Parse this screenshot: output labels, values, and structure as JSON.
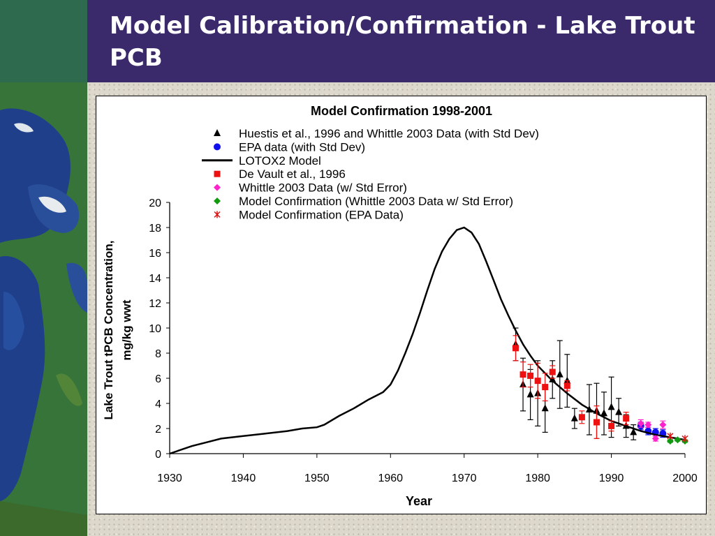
{
  "slide": {
    "title": "Model Calibration/Confirmation - Lake Trout PCB"
  },
  "colors": {
    "title_bar": "#3a2a6b",
    "green_block": "#2e6b4e",
    "huestis": "#000000",
    "epa": "#1010ee",
    "model": "#000000",
    "devault": "#ee1111",
    "whittle": "#ff22cc",
    "confirm_whittle": "#119911",
    "confirm_epa": "#dd1111"
  },
  "chart_data": {
    "type": "scatter",
    "title": "Model Confirmation 1998-2001",
    "xlabel": "Year",
    "ylabel": "Lake Trout tPCB Concentration, mg/kg wwt",
    "xlim": [
      1930,
      2000
    ],
    "ylim": [
      0,
      20
    ],
    "x_ticks": [
      "1930",
      "1940",
      "1950",
      "1960",
      "1970",
      "1980",
      "1990",
      "2000"
    ],
    "y_ticks": [
      "0",
      "2",
      "4",
      "6",
      "8",
      "10",
      "12",
      "14",
      "16",
      "18",
      "20"
    ],
    "grid": false,
    "legend_position": "top",
    "series": [
      {
        "name": "Huestis et al., 1996 and Whittle 2003 Data (with Std Dev)",
        "marker": "triangle",
        "color": "#000000",
        "points": [
          {
            "x": 1977,
            "y": 8.7,
            "err": 1.3
          },
          {
            "x": 1978,
            "y": 5.5,
            "err": 2.1
          },
          {
            "x": 1979,
            "y": 4.7,
            "err": 2.0
          },
          {
            "x": 1980,
            "y": 4.8,
            "err": 2.6
          },
          {
            "x": 1981,
            "y": 3.6,
            "err": 1.9
          },
          {
            "x": 1982,
            "y": 5.9,
            "err": 1.5
          },
          {
            "x": 1983,
            "y": 6.3,
            "err": 2.7
          },
          {
            "x": 1984,
            "y": 5.8,
            "err": 2.1
          },
          {
            "x": 1985,
            "y": 2.8,
            "err": 0.8
          },
          {
            "x": 1987,
            "y": 3.5,
            "err": 2.0
          },
          {
            "x": 1988,
            "y": 3.4,
            "err": 2.2
          },
          {
            "x": 1989,
            "y": 3.2,
            "err": 1.7
          },
          {
            "x": 1990,
            "y": 3.7,
            "err": 2.4
          },
          {
            "x": 1991,
            "y": 3.3,
            "err": 1.1
          },
          {
            "x": 1992,
            "y": 2.2,
            "err": 0.9
          },
          {
            "x": 1993,
            "y": 1.7,
            "err": 0.6
          }
        ]
      },
      {
        "name": "EPA data (with Std Dev)",
        "marker": "circle",
        "color": "#1010ee",
        "points": [
          {
            "x": 1994,
            "y": 2.2,
            "err": 0.3
          },
          {
            "x": 1995,
            "y": 1.8,
            "err": 0.3
          },
          {
            "x": 1996,
            "y": 1.7,
            "err": 0.3
          },
          {
            "x": 1997,
            "y": 1.6,
            "err": 0.3
          }
        ]
      },
      {
        "name": "LOTOX2 Model",
        "marker": "line",
        "color": "#000000",
        "points": [
          {
            "x": 1930,
            "y": 0.0
          },
          {
            "x": 1933,
            "y": 0.6
          },
          {
            "x": 1935,
            "y": 0.9
          },
          {
            "x": 1937,
            "y": 1.2
          },
          {
            "x": 1940,
            "y": 1.4
          },
          {
            "x": 1943,
            "y": 1.6
          },
          {
            "x": 1946,
            "y": 1.8
          },
          {
            "x": 1948,
            "y": 2.0
          },
          {
            "x": 1950,
            "y": 2.1
          },
          {
            "x": 1951,
            "y": 2.3
          },
          {
            "x": 1953,
            "y": 3.0
          },
          {
            "x": 1955,
            "y": 3.6
          },
          {
            "x": 1957,
            "y": 4.3
          },
          {
            "x": 1959,
            "y": 4.9
          },
          {
            "x": 1960,
            "y": 5.5
          },
          {
            "x": 1961,
            "y": 6.6
          },
          {
            "x": 1962,
            "y": 8.0
          },
          {
            "x": 1963,
            "y": 9.5
          },
          {
            "x": 1964,
            "y": 11.2
          },
          {
            "x": 1965,
            "y": 13.0
          },
          {
            "x": 1966,
            "y": 14.7
          },
          {
            "x": 1967,
            "y": 16.1
          },
          {
            "x": 1968,
            "y": 17.1
          },
          {
            "x": 1969,
            "y": 17.8
          },
          {
            "x": 1970,
            "y": 18.0
          },
          {
            "x": 1971,
            "y": 17.6
          },
          {
            "x": 1972,
            "y": 16.7
          },
          {
            "x": 1973,
            "y": 15.3
          },
          {
            "x": 1974,
            "y": 13.8
          },
          {
            "x": 1975,
            "y": 12.3
          },
          {
            "x": 1976,
            "y": 11.0
          },
          {
            "x": 1977,
            "y": 9.8
          },
          {
            "x": 1978,
            "y": 8.7
          },
          {
            "x": 1979,
            "y": 7.8
          },
          {
            "x": 1980,
            "y": 7.0
          },
          {
            "x": 1982,
            "y": 5.8
          },
          {
            "x": 1984,
            "y": 4.8
          },
          {
            "x": 1986,
            "y": 3.9
          },
          {
            "x": 1988,
            "y": 3.2
          },
          {
            "x": 1990,
            "y": 2.6
          },
          {
            "x": 1992,
            "y": 2.2
          },
          {
            "x": 1994,
            "y": 1.8
          },
          {
            "x": 1996,
            "y": 1.5
          },
          {
            "x": 1998,
            "y": 1.3
          },
          {
            "x": 2000,
            "y": 1.1
          }
        ]
      },
      {
        "name": "De Vault et al., 1996",
        "marker": "square",
        "color": "#ee1111",
        "points": [
          {
            "x": 1977,
            "y": 8.4,
            "err": 1.0
          },
          {
            "x": 1978,
            "y": 6.3,
            "err": 1.0
          },
          {
            "x": 1979,
            "y": 6.2,
            "err": 0.9
          },
          {
            "x": 1980,
            "y": 5.8,
            "err": 1.4
          },
          {
            "x": 1981,
            "y": 5.3,
            "err": 1.1
          },
          {
            "x": 1982,
            "y": 6.5,
            "err": 0.5
          },
          {
            "x": 1984,
            "y": 5.4,
            "err": 0.4
          },
          {
            "x": 1986,
            "y": 2.9,
            "err": 0.5
          },
          {
            "x": 1988,
            "y": 2.5,
            "err": 1.3
          },
          {
            "x": 1990,
            "y": 2.2,
            "err": 0.4
          },
          {
            "x": 1992,
            "y": 2.8,
            "err": 0.5
          }
        ]
      },
      {
        "name": "Whittle 2003 Data (w/ Std Error)",
        "marker": "diamond",
        "color": "#ff22cc",
        "points": [
          {
            "x": 1994,
            "y": 2.4,
            "err": 0.3
          },
          {
            "x": 1995,
            "y": 2.3,
            "err": 0.2
          },
          {
            "x": 1996,
            "y": 1.2,
            "err": 0.2
          },
          {
            "x": 1997,
            "y": 2.3,
            "err": 0.3
          }
        ]
      },
      {
        "name": "Model Confirmation (Whittle 2003 Data w/ Std Error)",
        "marker": "diamond",
        "color": "#119911",
        "points": [
          {
            "x": 1998,
            "y": 1.0,
            "err": 0.1
          },
          {
            "x": 1999,
            "y": 1.1,
            "err": 0.1
          },
          {
            "x": 2000,
            "y": 1.0,
            "err": 0.1
          }
        ]
      },
      {
        "name": "Model Confirmation (EPA Data)",
        "marker": "asterisk",
        "color": "#dd1111",
        "points": [
          {
            "x": 1998,
            "y": 1.4
          },
          {
            "x": 2000,
            "y": 1.2
          }
        ]
      }
    ]
  }
}
